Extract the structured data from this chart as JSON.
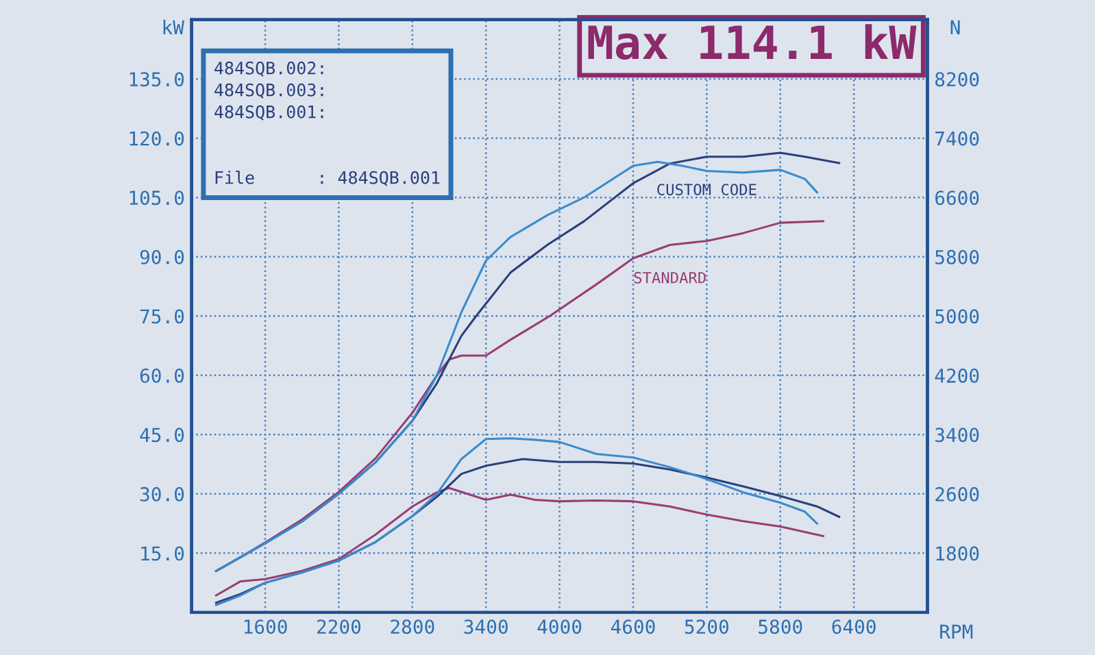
{
  "chart_data": {
    "type": "line",
    "title": "Max 114.1 kW",
    "xlabel": "RPM",
    "ylabel": "kW",
    "y2label": "N",
    "annotations": [
      "484SQB.002:",
      "484SQB.003:",
      "484SQB.001:",
      "File      : 484SQB.001"
    ],
    "xlim": [
      1000,
      7000
    ],
    "xticks": [
      1600,
      2200,
      2800,
      3400,
      4000,
      4600,
      5200,
      5800,
      6400
    ],
    "ylim": [
      0,
      150
    ],
    "yticks": [
      {
        "value": 15,
        "label": "15.0"
      },
      {
        "value": 30,
        "label": "30.0"
      },
      {
        "value": 45,
        "label": "45.0"
      },
      {
        "value": 60,
        "label": "60.0"
      },
      {
        "value": 75,
        "label": "75.0"
      },
      {
        "value": 90,
        "label": "90.0"
      },
      {
        "value": 105,
        "label": "105.0"
      },
      {
        "value": 120,
        "label": "120.0"
      },
      {
        "value": 135,
        "label": "135.0"
      }
    ],
    "y2lim": [
      1000,
      9000
    ],
    "y2ticks": [
      1800,
      2600,
      3400,
      4200,
      5000,
      5800,
      6600,
      7400,
      8200
    ],
    "grid": true,
    "legend": false,
    "line_style": "solid",
    "marker": "none",
    "series": [
      {
        "name": "STANDARD",
        "color": "#9a3d72",
        "x": [
          1200,
          1400,
          1600,
          1900,
          2200,
          2500,
          2800,
          3000,
          3100,
          3200,
          3400,
          3600,
          3920,
          4300,
          4600,
          4900,
          5200,
          5500,
          5800,
          6150
        ],
        "values": [
          10.5,
          14,
          17.7,
          23.5,
          30.5,
          39,
          50.5,
          60,
          64,
          65,
          65,
          69,
          75,
          83,
          89.6,
          93,
          94,
          96,
          98.6,
          99
        ]
      },
      {
        "name": "CUSTOM CODE",
        "color": "#2b3f7c",
        "x": [
          1200,
          1400,
          1600,
          1900,
          2200,
          2500,
          2800,
          3000,
          3200,
          3320,
          3600,
          3900,
          4200,
          4600,
          4900,
          5200,
          5500,
          5800,
          6000,
          6280
        ],
        "values": [
          10.5,
          14,
          17.5,
          23,
          30,
          38,
          48.5,
          58,
          70,
          75,
          86,
          93,
          99,
          108.6,
          113.6,
          115.3,
          115.3,
          116.3,
          115.3,
          113.7
        ]
      },
      {
        "color": "#3a8ccc",
        "x": [
          1200,
          1400,
          1600,
          1900,
          2200,
          2500,
          2800,
          3000,
          3200,
          3400,
          3600,
          3900,
          4200,
          4600,
          4800,
          5000,
          5200,
          5500,
          5800,
          6000,
          6100
        ],
        "values": [
          10.5,
          14,
          17.5,
          23,
          30,
          38,
          48.5,
          60,
          76,
          89,
          95,
          100.5,
          105,
          113,
          114,
          113,
          111.7,
          111.3,
          112,
          109.7,
          106.3
        ]
      },
      {
        "axis": "y2",
        "color": "#9a3d72",
        "x": [
          1200,
          1400,
          1600,
          1900,
          2200,
          2500,
          2800,
          3000,
          3100,
          3400,
          3600,
          3800,
          4000,
          4300,
          4600,
          4900,
          5200,
          5500,
          5800,
          6150
        ],
        "values": [
          1230,
          1420,
          1450,
          1560,
          1720,
          2050,
          2430,
          2620,
          2680,
          2520,
          2590,
          2520,
          2500,
          2510,
          2500,
          2430,
          2320,
          2230,
          2160,
          2030
        ]
      },
      {
        "axis": "y2",
        "color": "#2b3f7c",
        "x": [
          1200,
          1400,
          1600,
          1900,
          2200,
          2500,
          2800,
          3000,
          3200,
          3400,
          3700,
          4000,
          4300,
          4600,
          4900,
          5200,
          5500,
          5800,
          6100,
          6280
        ],
        "values": [
          1130,
          1250,
          1400,
          1540,
          1700,
          1950,
          2300,
          2560,
          2870,
          2980,
          3070,
          3030,
          3030,
          3010,
          2930,
          2820,
          2700,
          2570,
          2430,
          2290
        ]
      },
      {
        "axis": "y2",
        "color": "#3a8ccc",
        "x": [
          1200,
          1400,
          1600,
          1900,
          2200,
          2500,
          2800,
          3000,
          3200,
          3400,
          3600,
          3800,
          4000,
          4300,
          4600,
          4900,
          5200,
          5500,
          5800,
          6000,
          6100
        ],
        "values": [
          1100,
          1230,
          1400,
          1540,
          1700,
          1950,
          2300,
          2600,
          3070,
          3340,
          3350,
          3330,
          3300,
          3140,
          3090,
          2960,
          2800,
          2620,
          2480,
          2360,
          2200
        ]
      }
    ]
  }
}
